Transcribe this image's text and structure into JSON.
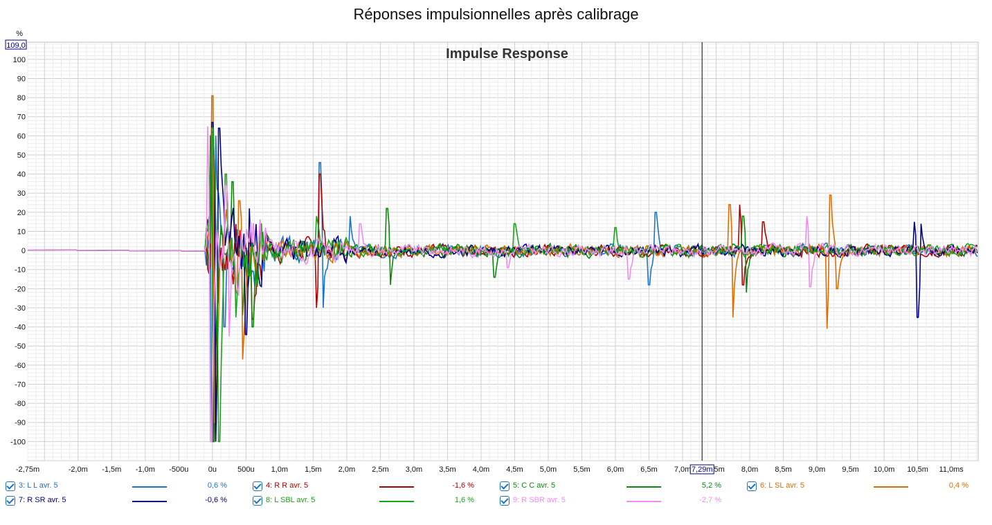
{
  "page_title": "Réponses impulsionnelles après calibrage",
  "chart_data": {
    "type": "line",
    "title": "Impulse Response",
    "yunit": "%",
    "ylim": [
      -110,
      109
    ],
    "y_top_readout": "109,0",
    "yticks": [
      100,
      90,
      80,
      70,
      60,
      50,
      40,
      30,
      20,
      10,
      0,
      -10,
      -20,
      -30,
      -40,
      -50,
      -60,
      -70,
      -80,
      -90,
      -100
    ],
    "ytick_labels": [
      "100",
      "90",
      "80",
      "70",
      "60",
      "50",
      "40",
      "30",
      "20",
      "10",
      "0",
      "-10",
      "-20",
      "-30",
      "-40",
      "-50",
      "-60",
      "-70",
      "-80",
      "-90",
      "-100"
    ],
    "xlim_ms": [
      -2.75,
      11.4
    ],
    "xticks_ms": [
      -2.75,
      -2.0,
      -1.5,
      -1.0,
      -0.5,
      0,
      0.5,
      1.0,
      1.5,
      2.0,
      2.5,
      3.0,
      3.5,
      4.0,
      4.5,
      5.0,
      5.5,
      6.0,
      6.5,
      7.0,
      7.5,
      8.0,
      8.5,
      9.0,
      9.5,
      10.0,
      10.5,
      11.0
    ],
    "xtick_labels": [
      "-2,75m",
      "-2,0m",
      "-1,5m",
      "-1,0m",
      "-500u",
      "0u",
      "500u",
      "1,0m",
      "1,5m",
      "2,0m",
      "2,5m",
      "3,0m",
      "3,5m",
      "4,0m",
      "4,5m",
      "5,0m",
      "5,5m",
      "6,0m",
      "6,5m",
      "7,0m",
      "7,5m",
      "8,0m",
      "8,5m",
      "9,0m",
      "9,5m",
      "10,0m",
      "10,5m",
      "11,0ms"
    ],
    "cursor_ms": 7.29,
    "cursor_label": "7,29m",
    "grid": true,
    "series": [
      {
        "name": "3: L L avr. 5",
        "color": "#1874cd",
        "value_label": "0,6 %",
        "seed": 3,
        "peaks": [
          [
            0.0,
            -100
          ],
          [
            0.05,
            60
          ],
          [
            0.18,
            -40
          ],
          [
            1.6,
            46
          ],
          [
            1.65,
            -30
          ],
          [
            6.6,
            20
          ],
          [
            6.5,
            -18
          ],
          [
            2.05,
            18
          ]
        ]
      },
      {
        "name": "4: R R avr. 5",
        "color": "#b00000",
        "value_label": "-1,6 %",
        "seed": 7,
        "peaks": [
          [
            0.0,
            62
          ],
          [
            0.03,
            -100
          ],
          [
            0.6,
            -36
          ],
          [
            1.6,
            40
          ],
          [
            1.55,
            -30
          ],
          [
            7.85,
            24
          ],
          [
            7.9,
            -18
          ],
          [
            8.2,
            15
          ]
        ]
      },
      {
        "name": "5: C C avr. 5",
        "color": "#0a8a0a",
        "value_label": "5,2 %",
        "seed": 11,
        "peaks": [
          [
            -0.02,
            60
          ],
          [
            0.02,
            -100
          ],
          [
            0.3,
            36
          ],
          [
            0.45,
            -34
          ],
          [
            0.6,
            -40
          ],
          [
            2.6,
            22
          ],
          [
            2.65,
            -18
          ],
          [
            4.2,
            -14
          ],
          [
            7.9,
            18
          ],
          [
            7.95,
            -22
          ]
        ]
      },
      {
        "name": "6: L SL avr. 5",
        "color": "#e06c00",
        "value_label": "0,4 %",
        "seed": 19,
        "peaks": [
          [
            0.0,
            81
          ],
          [
            0.04,
            -90
          ],
          [
            0.4,
            26
          ],
          [
            0.45,
            -57
          ],
          [
            7.7,
            24
          ],
          [
            7.75,
            -35
          ],
          [
            9.2,
            29
          ],
          [
            9.15,
            -41
          ],
          [
            9.3,
            -20
          ]
        ]
      },
      {
        "name": "7: R SR avr. 5",
        "color": "#000080",
        "value_label": "-0,6 %",
        "seed": 23,
        "peaks": [
          [
            0.0,
            67
          ],
          [
            0.05,
            -100
          ],
          [
            0.1,
            64
          ],
          [
            0.5,
            -44
          ],
          [
            0.55,
            22
          ],
          [
            10.45,
            15
          ],
          [
            10.5,
            -35
          ],
          [
            10.55,
            14
          ]
        ]
      },
      {
        "name": "8: L SBL avr. 5",
        "color": "#17a317",
        "value_label": "1,6 %",
        "seed": 29,
        "peaks": [
          [
            0.0,
            64
          ],
          [
            0.1,
            -100
          ],
          [
            0.2,
            40
          ],
          [
            0.35,
            -35
          ],
          [
            1.55,
            18
          ],
          [
            4.5,
            14
          ],
          [
            6.0,
            12
          ]
        ]
      },
      {
        "name": "9: R SBR avr. 5",
        "color": "#f08cf0",
        "value_label": "-2,7 %",
        "seed": 31,
        "peaks": [
          [
            -0.07,
            65
          ],
          [
            -0.02,
            -100
          ],
          [
            0.2,
            34
          ],
          [
            0.25,
            -45
          ],
          [
            2.2,
            14
          ],
          [
            4.4,
            -9
          ],
          [
            6.2,
            -15
          ],
          [
            8.85,
            18
          ],
          [
            8.9,
            -19
          ]
        ]
      }
    ]
  }
}
